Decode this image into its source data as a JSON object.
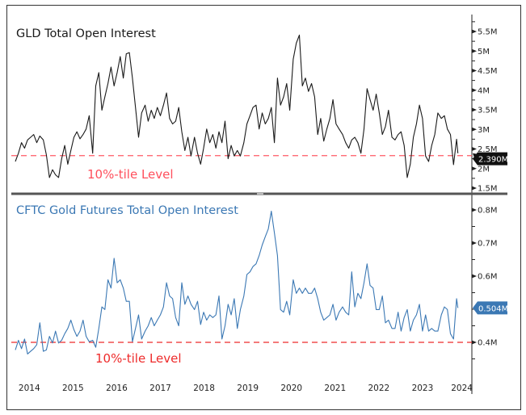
{
  "chart_data": [
    {
      "type": "line",
      "title": "GLD Total Open Interest",
      "color": "#1a1a1a",
      "ylim": [
        1.5,
        5.5
      ],
      "y_ticks": [
        "5.5M",
        "5M",
        "4.5M",
        "4M",
        "3.5M",
        "3M",
        "2.5M",
        "2M",
        "1.5M"
      ],
      "y_tick_values": [
        5.5,
        5,
        4.5,
        4,
        3.5,
        3,
        2.5,
        2,
        1.5
      ],
      "last_value_label": "2.390M",
      "last_value": 2.39,
      "reference_line": {
        "value": 2.33,
        "label": "10%-tile Level",
        "color": "#ff5a66"
      },
      "values": [
        2.18,
        2.39,
        2.66,
        2.52,
        2.73,
        2.8,
        2.87,
        2.66,
        2.83,
        2.73,
        2.35,
        1.77,
        1.97,
        1.84,
        1.77,
        2.25,
        2.59,
        2.11,
        2.46,
        2.8,
        2.94,
        2.76,
        2.87,
        3.01,
        3.35,
        2.39,
        4.11,
        4.45,
        3.49,
        3.83,
        4.17,
        4.59,
        4.11,
        4.45,
        4.86,
        4.31,
        4.93,
        4.96,
        4.31,
        3.56,
        2.8,
        3.42,
        3.62,
        3.21,
        3.49,
        3.28,
        3.56,
        3.35,
        3.62,
        3.93,
        3.28,
        3.14,
        3.21,
        3.56,
        2.94,
        2.46,
        2.8,
        2.32,
        2.8,
        2.39,
        2.11,
        2.52,
        3.01,
        2.66,
        2.87,
        2.52,
        2.94,
        2.66,
        3.21,
        2.25,
        2.59,
        2.32,
        2.46,
        2.32,
        2.66,
        3.14,
        3.35,
        3.56,
        3.62,
        3.01,
        3.42,
        3.14,
        3.28,
        3.56,
        2.66,
        4.31,
        3.62,
        3.83,
        4.17,
        3.49,
        4.79,
        5.2,
        5.41,
        4.11,
        4.31,
        3.97,
        4.17,
        3.83,
        2.87,
        3.28,
        2.7,
        3.01,
        3.28,
        3.76,
        3.14,
        3.01,
        2.87,
        2.66,
        2.52,
        2.73,
        2.8,
        2.66,
        2.39,
        3.01,
        4.04,
        3.76,
        3.49,
        3.9,
        3.42,
        2.87,
        3.07,
        3.49,
        2.8,
        2.73,
        2.87,
        2.94,
        2.59,
        1.77,
        2.11,
        2.8,
        3.14,
        3.62,
        3.28,
        2.32,
        2.18,
        2.59,
        2.87,
        3.42,
        3.28,
        3.35,
        3.01,
        2.87,
        2.1,
        2.75,
        2.39
      ]
    },
    {
      "type": "line",
      "title": "CFTC Gold Futures Total Open Interest",
      "color": "#3b78b4",
      "ylim": [
        0.35,
        0.82
      ],
      "y_ticks": [
        "0.8M",
        "0.7M",
        "0.6M",
        "0.4M"
      ],
      "y_tick_values": [
        0.8,
        0.7,
        0.6,
        0.4
      ],
      "last_value_label": "0.504M",
      "last_value": 0.504,
      "reference_line": {
        "value": 0.4,
        "label": "10%-tile Level",
        "color": "#ee2b2b"
      },
      "values": [
        0.377,
        0.406,
        0.381,
        0.41,
        0.365,
        0.373,
        0.381,
        0.393,
        0.459,
        0.373,
        0.377,
        0.418,
        0.398,
        0.434,
        0.398,
        0.406,
        0.426,
        0.442,
        0.467,
        0.438,
        0.418,
        0.434,
        0.467,
        0.418,
        0.402,
        0.406,
        0.385,
        0.442,
        0.507,
        0.499,
        0.589,
        0.564,
        0.654,
        0.58,
        0.589,
        0.564,
        0.524,
        0.524,
        0.402,
        0.442,
        0.483,
        0.41,
        0.434,
        0.45,
        0.475,
        0.45,
        0.467,
        0.483,
        0.507,
        0.58,
        0.54,
        0.532,
        0.475,
        0.45,
        0.58,
        0.515,
        0.54,
        0.515,
        0.499,
        0.524,
        0.454,
        0.491,
        0.467,
        0.483,
        0.475,
        0.483,
        0.54,
        0.41,
        0.45,
        0.515,
        0.483,
        0.532,
        0.442,
        0.499,
        0.54,
        0.605,
        0.613,
        0.629,
        0.637,
        0.662,
        0.694,
        0.719,
        0.743,
        0.796,
        0.731,
        0.662,
        0.499,
        0.491,
        0.524,
        0.483,
        0.589,
        0.548,
        0.564,
        0.548,
        0.564,
        0.548,
        0.548,
        0.564,
        0.532,
        0.491,
        0.467,
        0.475,
        0.483,
        0.515,
        0.467,
        0.491,
        0.507,
        0.491,
        0.483,
        0.613,
        0.507,
        0.548,
        0.532,
        0.58,
        0.637,
        0.572,
        0.564,
        0.499,
        0.499,
        0.54,
        0.459,
        0.467,
        0.442,
        0.442,
        0.491,
        0.434,
        0.475,
        0.499,
        0.434,
        0.467,
        0.483,
        0.515,
        0.434,
        0.483,
        0.434,
        0.442,
        0.434,
        0.434,
        0.483,
        0.507,
        0.499,
        0.426,
        0.41,
        0.532,
        0.504
      ]
    }
  ],
  "x": [
    2014.18,
    2014.25,
    2014.32,
    2014.39,
    2014.46,
    2014.53,
    2014.6,
    2014.67,
    2014.74,
    2014.82,
    2014.89,
    2014.96,
    2015.03,
    2015.1,
    2015.17,
    2015.24,
    2015.31,
    2015.38,
    2015.45,
    2015.52,
    2015.59,
    2015.66,
    2015.73,
    2015.8,
    2015.87,
    2015.95,
    2016.02,
    2016.09,
    2016.16,
    2016.23,
    2016.3,
    2016.37,
    2016.44,
    2016.51,
    2016.58,
    2016.65,
    2016.72,
    2016.79,
    2016.86,
    2016.93,
    2017.0,
    2017.07,
    2017.15,
    2017.22,
    2017.29,
    2017.36,
    2017.43,
    2017.5,
    2017.57,
    2017.64,
    2017.71,
    2017.78,
    2017.85,
    2017.92,
    2017.99,
    2018.06,
    2018.13,
    2018.2,
    2018.28,
    2018.35,
    2018.42,
    2018.49,
    2018.56,
    2018.63,
    2018.7,
    2018.77,
    2018.84,
    2018.91,
    2018.98,
    2019.05,
    2019.12,
    2019.19,
    2019.26,
    2019.33,
    2019.41,
    2019.48,
    2019.55,
    2019.62,
    2019.69,
    2019.76,
    2019.83,
    2019.9,
    2019.97,
    2020.04,
    2020.11,
    2020.18,
    2020.25,
    2020.32,
    2020.39,
    2020.46,
    2020.54,
    2020.61,
    2020.68,
    2020.75,
    2020.82,
    2020.89,
    2020.96,
    2021.03,
    2021.1,
    2021.17,
    2021.24,
    2021.31,
    2021.38,
    2021.45,
    2021.52,
    2021.59,
    2021.67,
    2021.74,
    2021.81,
    2021.88,
    2021.95,
    2022.02,
    2022.09,
    2022.16,
    2022.23,
    2022.3,
    2022.37,
    2022.44,
    2022.51,
    2022.58,
    2022.65,
    2022.72,
    2022.8,
    2022.87,
    2022.94,
    2023.01,
    2023.08,
    2023.15,
    2023.22,
    2023.29,
    2023.36,
    2023.43,
    2023.5,
    2023.57,
    2023.64,
    2023.71,
    2023.78,
    2023.85,
    2023.93,
    2024.0,
    2024.07,
    2024.14,
    2024.21,
    2024.28,
    2024.31
  ],
  "x_ticks": [
    "2014",
    "2015",
    "2016",
    "2017",
    "2018",
    "2019",
    "2020",
    "2021",
    "2022",
    "2023",
    "2024"
  ],
  "x_tick_positions": [
    2014.5,
    2015.5,
    2016.5,
    2017.5,
    2018.5,
    2019.5,
    2020.5,
    2021.5,
    2022.5,
    2023.5,
    2024.4
  ]
}
